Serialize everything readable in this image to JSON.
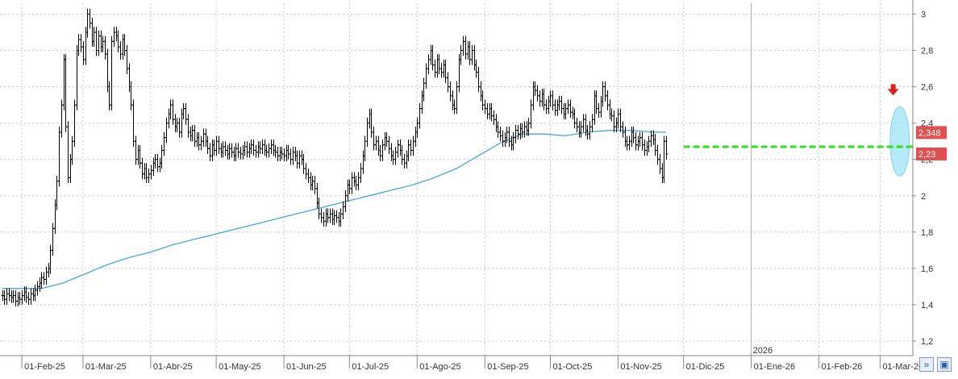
{
  "chart_data": {
    "type": "bar",
    "subtype": "ohlc",
    "title": "",
    "xlabel": "",
    "ylabel": "",
    "ylim": [
      1.12,
      3.06
    ],
    "y_ticks": [
      1.2,
      1.4,
      1.6,
      1.8,
      2,
      2.2,
      2.4,
      2.6,
      2.8,
      3
    ],
    "y_tick_labels": [
      "1,2",
      "1,4",
      "1,6",
      "1,8",
      "2",
      "2,2",
      "2,4",
      "2,6",
      "2,8",
      "3"
    ],
    "x_tick_labels": [
      "01-Feb-25",
      "01-Mar-25",
      "01-Abr-25",
      "01-May-25",
      "01-Jun-25",
      "01-Jul-25",
      "01-Ago-25",
      "01-Sep-25",
      "01-Oct-25",
      "01-Nov-25",
      "01-Dic-25",
      "01-Ene-26",
      "01-Feb-26",
      "01-Mar-26"
    ],
    "x_tick_days": [
      31,
      59,
      90,
      120,
      151,
      181,
      212,
      243,
      273,
      304,
      334,
      365,
      396,
      424
    ],
    "year_marker": {
      "label": "2026",
      "day": 365
    },
    "x_day_range": [
      21,
      439
    ],
    "grid": true,
    "price_series": [
      [
        22,
        1.45
      ],
      [
        23,
        1.43
      ],
      [
        24,
        1.46
      ],
      [
        25,
        1.45
      ],
      [
        26,
        1.44
      ],
      [
        27,
        1.45
      ],
      [
        28,
        1.42
      ],
      [
        29,
        1.44
      ],
      [
        30,
        1.43
      ],
      [
        31,
        1.45
      ],
      [
        32,
        1.47
      ],
      [
        33,
        1.44
      ],
      [
        34,
        1.43
      ],
      [
        35,
        1.46
      ],
      [
        36,
        1.45
      ],
      [
        37,
        1.48
      ],
      [
        38,
        1.5
      ],
      [
        39,
        1.52
      ],
      [
        40,
        1.55
      ],
      [
        41,
        1.54
      ],
      [
        42,
        1.58
      ],
      [
        43,
        1.6
      ],
      [
        44,
        1.7
      ],
      [
        45,
        1.82
      ],
      [
        46,
        1.95
      ],
      [
        47,
        2.08
      ],
      [
        48,
        2.35
      ],
      [
        49,
        2.5
      ],
      [
        50,
        2.75
      ],
      [
        51,
        2.38
      ],
      [
        52,
        2.1
      ],
      [
        53,
        2.2
      ],
      [
        54,
        2.3
      ],
      [
        55,
        2.5
      ],
      [
        56,
        2.8
      ],
      [
        57,
        2.86
      ],
      [
        58,
        2.82
      ],
      [
        59,
        2.75
      ],
      [
        60,
        2.9
      ],
      [
        61,
        3
      ],
      [
        62,
        2.95
      ],
      [
        63,
        2.85
      ],
      [
        64,
        2.9
      ],
      [
        65,
        2.8
      ],
      [
        66,
        2.88
      ],
      [
        67,
        2.82
      ],
      [
        68,
        2.85
      ],
      [
        69,
        2.78
      ],
      [
        70,
        2.6
      ],
      [
        71,
        2.5
      ],
      [
        72,
        2.85
      ],
      [
        73,
        2.9
      ],
      [
        74,
        2.88
      ],
      [
        75,
        2.82
      ],
      [
        76,
        2.78
      ],
      [
        77,
        2.86
      ],
      [
        78,
        2.8
      ],
      [
        79,
        2.7
      ],
      [
        80,
        2.6
      ],
      [
        81,
        2.5
      ],
      [
        82,
        2.3
      ],
      [
        83,
        2.2
      ],
      [
        84,
        2.25
      ],
      [
        85,
        2.18
      ],
      [
        86,
        2.12
      ],
      [
        87,
        2.15
      ],
      [
        88,
        2.1
      ],
      [
        89,
        2.12
      ],
      [
        90,
        2.14
      ],
      [
        91,
        2.18
      ],
      [
        92,
        2.2
      ],
      [
        93,
        2.16
      ],
      [
        94,
        2.18
      ],
      [
        95,
        2.25
      ],
      [
        96,
        2.32
      ],
      [
        97,
        2.4
      ],
      [
        98,
        2.45
      ],
      [
        99,
        2.5
      ],
      [
        100,
        2.42
      ],
      [
        101,
        2.38
      ],
      [
        102,
        2.4
      ],
      [
        103,
        2.35
      ],
      [
        104,
        2.45
      ],
      [
        105,
        2.48
      ],
      [
        106,
        2.42
      ],
      [
        107,
        2.35
      ],
      [
        108,
        2.33
      ],
      [
        109,
        2.36
      ],
      [
        110,
        2.3
      ],
      [
        111,
        2.32
      ],
      [
        112,
        2.28
      ],
      [
        113,
        2.3
      ],
      [
        114,
        2.34
      ],
      [
        115,
        2.3
      ],
      [
        116,
        2.26
      ],
      [
        117,
        2.22
      ],
      [
        118,
        2.28
      ],
      [
        119,
        2.25
      ],
      [
        120,
        2.3
      ],
      [
        121,
        2.26
      ],
      [
        122,
        2.24
      ],
      [
        123,
        2.27
      ],
      [
        124,
        2.25
      ],
      [
        125,
        2.23
      ],
      [
        126,
        2.26
      ],
      [
        127,
        2.24
      ],
      [
        128,
        2.22
      ],
      [
        129,
        2.26
      ],
      [
        130,
        2.24
      ],
      [
        131,
        2.23
      ],
      [
        132,
        2.25
      ],
      [
        133,
        2.27
      ],
      [
        134,
        2.24
      ],
      [
        135,
        2.26
      ],
      [
        136,
        2.28
      ],
      [
        137,
        2.25
      ],
      [
        138,
        2.24
      ],
      [
        139,
        2.27
      ],
      [
        140,
        2.26
      ],
      [
        141,
        2.28
      ],
      [
        142,
        2.25
      ],
      [
        143,
        2.24
      ],
      [
        144,
        2.26
      ],
      [
        145,
        2.28
      ],
      [
        146,
        2.25
      ],
      [
        147,
        2.24
      ],
      [
        148,
        2.22
      ],
      [
        149,
        2.24
      ],
      [
        150,
        2.23
      ],
      [
        151,
        2.22
      ],
      [
        152,
        2.25
      ],
      [
        153,
        2.23
      ],
      [
        154,
        2.2
      ],
      [
        155,
        2.24
      ],
      [
        156,
        2.22
      ],
      [
        157,
        2.18
      ],
      [
        158,
        2.22
      ],
      [
        159,
        2.2
      ],
      [
        160,
        2.15
      ],
      [
        161,
        2.12
      ],
      [
        162,
        2.1
      ],
      [
        163,
        2.06
      ],
      [
        164,
        2.08
      ],
      [
        165,
        2.04
      ],
      [
        166,
        1.96
      ],
      [
        167,
        1.9
      ],
      [
        168,
        1.88
      ],
      [
        169,
        1.86
      ],
      [
        170,
        1.9
      ],
      [
        171,
        1.88
      ],
      [
        172,
        1.9
      ],
      [
        173,
        1.87
      ],
      [
        174,
        1.89
      ],
      [
        175,
        1.88
      ],
      [
        176,
        1.86
      ],
      [
        177,
        1.9
      ],
      [
        178,
        1.94
      ],
      [
        179,
        2
      ],
      [
        180,
        2.06
      ],
      [
        181,
        2.04
      ],
      [
        182,
        2.1
      ],
      [
        183,
        2.08
      ],
      [
        184,
        2.06
      ],
      [
        185,
        2.1
      ],
      [
        186,
        2.15
      ],
      [
        187,
        2.22
      ],
      [
        188,
        2.3
      ],
      [
        189,
        2.4
      ],
      [
        190,
        2.45
      ],
      [
        191,
        2.35
      ],
      [
        192,
        2.28
      ],
      [
        193,
        2.3
      ],
      [
        194,
        2.25
      ],
      [
        195,
        2.22
      ],
      [
        196,
        2.28
      ],
      [
        197,
        2.32
      ],
      [
        198,
        2.3
      ],
      [
        199,
        2.26
      ],
      [
        200,
        2.22
      ],
      [
        201,
        2.2
      ],
      [
        202,
        2.24
      ],
      [
        203,
        2.28
      ],
      [
        204,
        2.25
      ],
      [
        205,
        2.2
      ],
      [
        206,
        2.18
      ],
      [
        207,
        2.22
      ],
      [
        208,
        2.28
      ],
      [
        209,
        2.25
      ],
      [
        210,
        2.3
      ],
      [
        211,
        2.35
      ],
      [
        212,
        2.4
      ],
      [
        213,
        2.48
      ],
      [
        214,
        2.55
      ],
      [
        215,
        2.62
      ],
      [
        216,
        2.7
      ],
      [
        217,
        2.75
      ],
      [
        218,
        2.8
      ],
      [
        219,
        2.72
      ],
      [
        220,
        2.68
      ],
      [
        221,
        2.75
      ],
      [
        222,
        2.7
      ],
      [
        223,
        2.68
      ],
      [
        224,
        2.72
      ],
      [
        225,
        2.65
      ],
      [
        226,
        2.6
      ],
      [
        227,
        2.55
      ],
      [
        228,
        2.5
      ],
      [
        229,
        2.48
      ],
      [
        230,
        2.6
      ],
      [
        231,
        2.75
      ],
      [
        232,
        2.8
      ],
      [
        233,
        2.85
      ],
      [
        234,
        2.78
      ],
      [
        235,
        2.82
      ],
      [
        236,
        2.75
      ],
      [
        237,
        2.8
      ],
      [
        238,
        2.72
      ],
      [
        239,
        2.68
      ],
      [
        240,
        2.6
      ],
      [
        241,
        2.55
      ],
      [
        242,
        2.5
      ],
      [
        243,
        2.48
      ],
      [
        244,
        2.45
      ],
      [
        245,
        2.48
      ],
      [
        246,
        2.44
      ],
      [
        247,
        2.42
      ],
      [
        248,
        2.38
      ],
      [
        249,
        2.35
      ],
      [
        250,
        2.33
      ],
      [
        251,
        2.3
      ],
      [
        252,
        2.32
      ],
      [
        253,
        2.35
      ],
      [
        254,
        2.3
      ],
      [
        255,
        2.28
      ],
      [
        256,
        2.32
      ],
      [
        257,
        2.36
      ],
      [
        258,
        2.34
      ],
      [
        259,
        2.37
      ],
      [
        260,
        2.35
      ],
      [
        261,
        2.38
      ],
      [
        262,
        2.36
      ],
      [
        263,
        2.4
      ],
      [
        264,
        2.5
      ],
      [
        265,
        2.6
      ],
      [
        266,
        2.58
      ],
      [
        267,
        2.55
      ],
      [
        268,
        2.52
      ],
      [
        269,
        2.56
      ],
      [
        270,
        2.5
      ],
      [
        271,
        2.48
      ],
      [
        272,
        2.52
      ],
      [
        273,
        2.55
      ],
      [
        274,
        2.5
      ],
      [
        275,
        2.47
      ],
      [
        276,
        2.5
      ],
      [
        277,
        2.52
      ],
      [
        278,
        2.48
      ],
      [
        279,
        2.45
      ],
      [
        280,
        2.48
      ],
      [
        281,
        2.5
      ],
      [
        282,
        2.46
      ],
      [
        283,
        2.45
      ],
      [
        284,
        2.4
      ],
      [
        285,
        2.38
      ],
      [
        286,
        2.35
      ],
      [
        287,
        2.38
      ],
      [
        288,
        2.42
      ],
      [
        289,
        2.36
      ],
      [
        290,
        2.34
      ],
      [
        291,
        2.38
      ],
      [
        292,
        2.42
      ],
      [
        293,
        2.55
      ],
      [
        294,
        2.48
      ],
      [
        295,
        2.46
      ],
      [
        296,
        2.52
      ],
      [
        297,
        2.6
      ],
      [
        298,
        2.55
      ],
      [
        299,
        2.5
      ],
      [
        300,
        2.45
      ],
      [
        301,
        2.44
      ],
      [
        302,
        2.38
      ],
      [
        303,
        2.4
      ],
      [
        304,
        2.45
      ],
      [
        305,
        2.38
      ],
      [
        306,
        2.35
      ],
      [
        307,
        2.3
      ],
      [
        308,
        2.28
      ],
      [
        309,
        2.3
      ],
      [
        310,
        2.35
      ],
      [
        311,
        2.32
      ],
      [
        312,
        2.28
      ],
      [
        313,
        2.3
      ],
      [
        314,
        2.32
      ],
      [
        315,
        2.28
      ],
      [
        316,
        2.25
      ],
      [
        317,
        2.27
      ],
      [
        318,
        2.3
      ],
      [
        319,
        2.33
      ],
      [
        320,
        2.31
      ],
      [
        321,
        2.25
      ],
      [
        322,
        2.2
      ],
      [
        323,
        2.15
      ],
      [
        324,
        2.1
      ],
      [
        325,
        2.3
      ],
      [
        326,
        2.23
      ]
    ],
    "series": [
      {
        "name": "",
        "kind": "ohlc-bars",
        "color": "#000000"
      },
      {
        "name": "",
        "kind": "moving-average",
        "color": "#3fa9d6",
        "x": [
          22,
          30,
          40,
          50,
          60,
          70,
          80,
          90,
          100,
          110,
          120,
          130,
          140,
          150,
          160,
          170,
          180,
          190,
          200,
          210,
          220,
          230,
          240,
          250,
          260,
          270,
          280,
          290,
          300,
          310,
          320,
          326
        ],
        "values": [
          1.49,
          1.49,
          1.49,
          1.52,
          1.57,
          1.62,
          1.66,
          1.69,
          1.73,
          1.76,
          1.79,
          1.82,
          1.85,
          1.88,
          1.91,
          1.94,
          1.97,
          2.0,
          2.03,
          2.06,
          2.1,
          2.15,
          2.22,
          2.29,
          2.34,
          2.34,
          2.33,
          2.35,
          2.36,
          2.36,
          2.35,
          2.35
        ]
      }
    ],
    "support_line": {
      "value": 2.27,
      "color": "#33dd22",
      "from_day": 334,
      "to_day": 439
    },
    "last_price_labels": [
      {
        "value": 2.348,
        "label": "2,348",
        "color": "#e05050"
      },
      {
        "value": 2.23,
        "label": "2,23",
        "color": "#e05050"
      }
    ],
    "annotations": [
      {
        "kind": "arrow-down",
        "day": 430,
        "value": 2.57,
        "color": "#e02020"
      },
      {
        "kind": "ellipse",
        "day": 433,
        "value": 2.3,
        "color": "#9fe3f5"
      }
    ]
  },
  "toolbar": {
    "nav_icon": "double-chevron-icon",
    "save_icon": "save-icon"
  }
}
